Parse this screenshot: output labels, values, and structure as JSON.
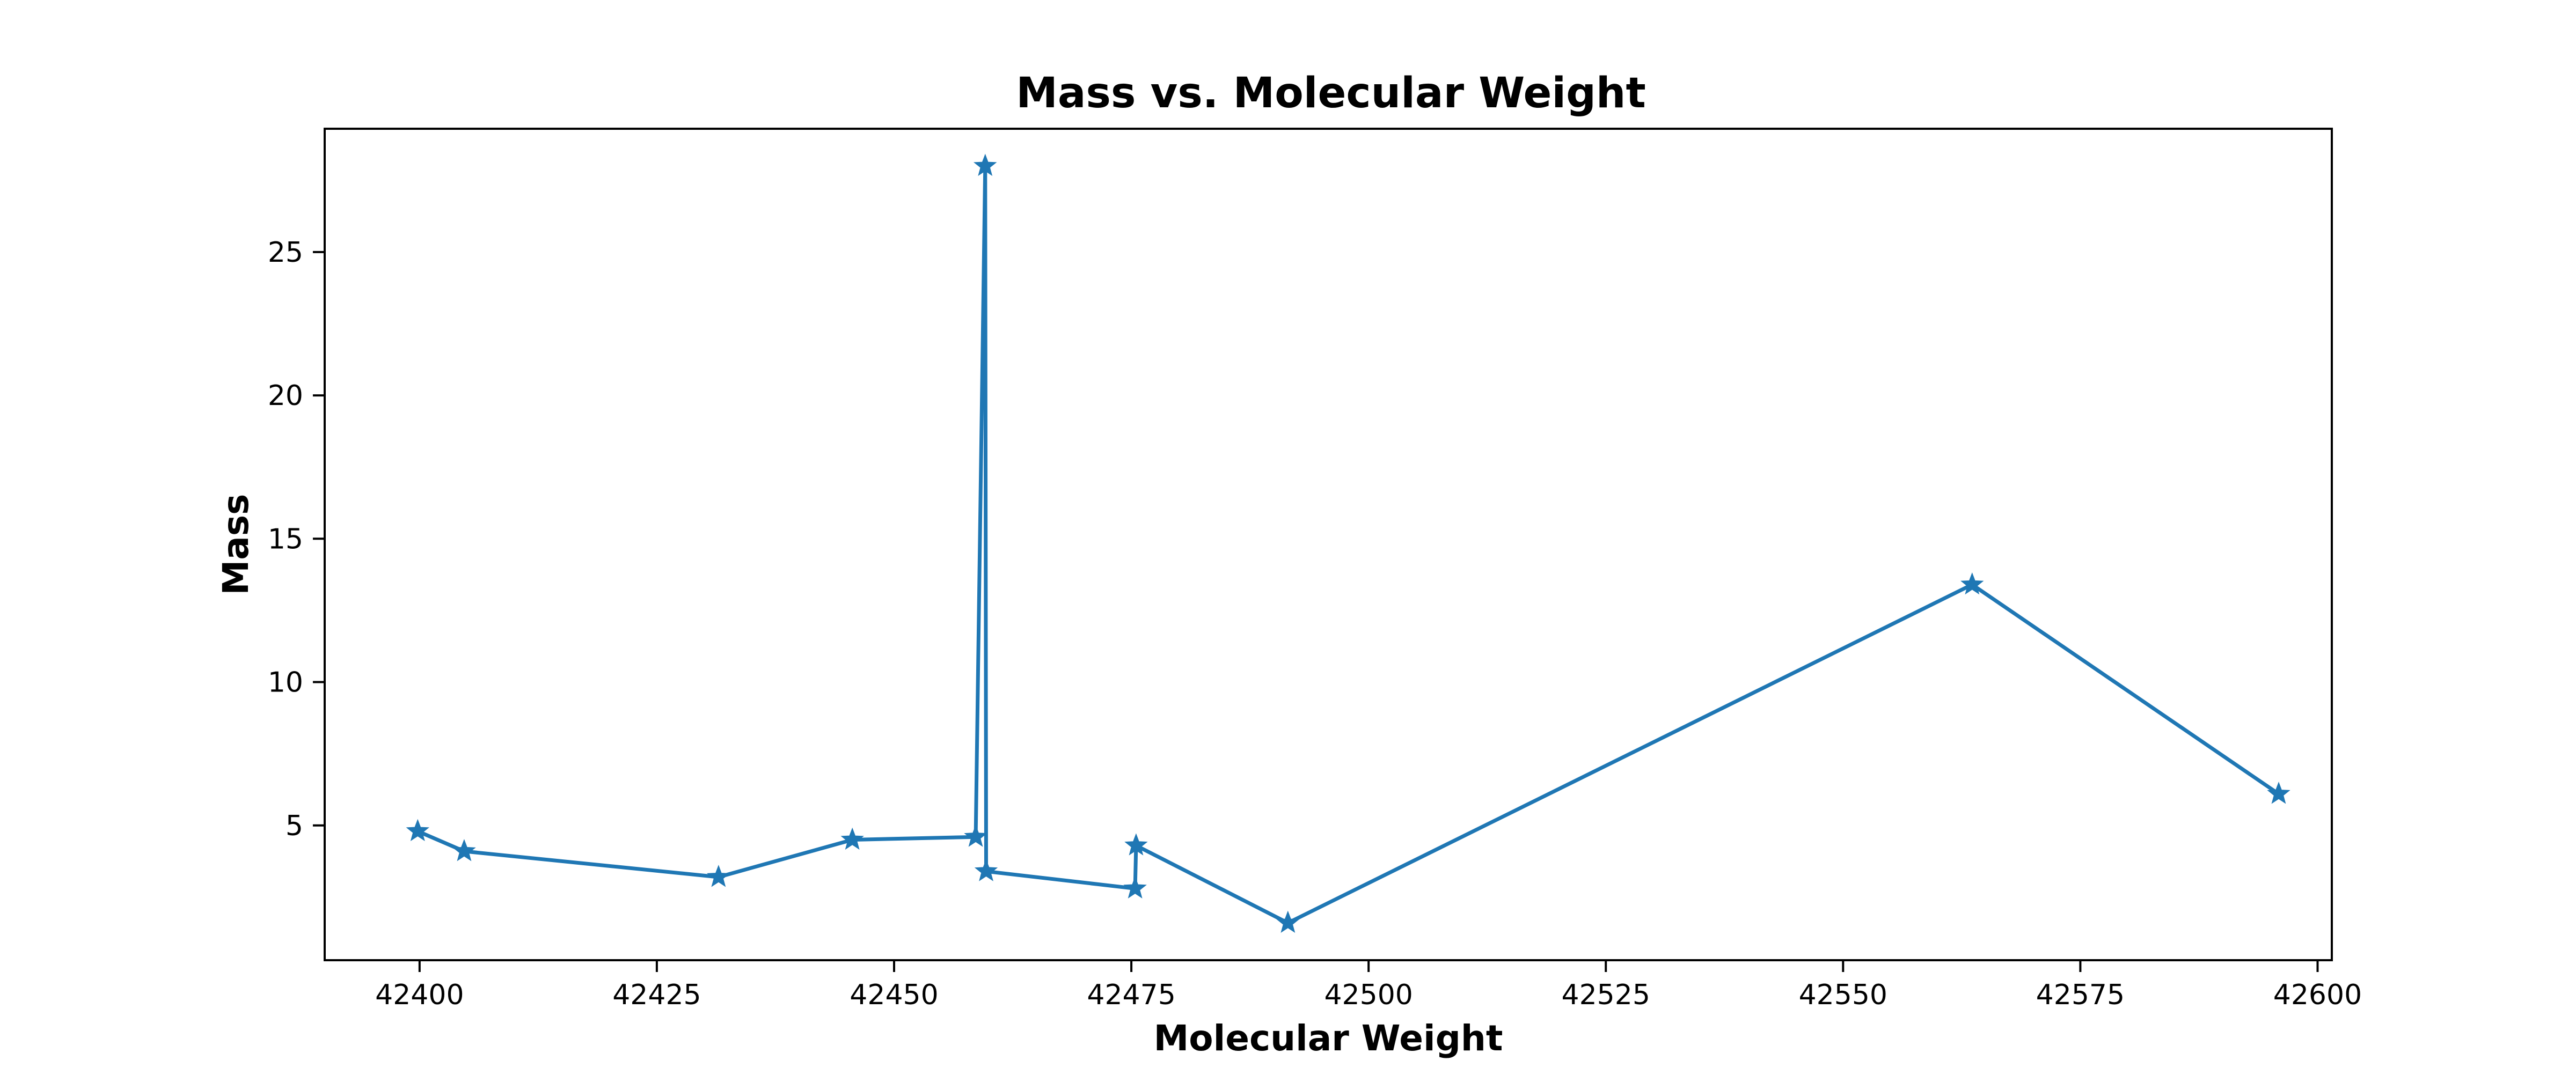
{
  "chart_data": {
    "type": "line",
    "title": "Mass vs. Molecular Weight",
    "xlabel": "Molecular Weight",
    "ylabel": "Mass",
    "xlim": [
      42390,
      42601.5
    ],
    "ylim": [
      0.3,
      29.3
    ],
    "xticks": [
      42400,
      42425,
      42450,
      42475,
      42500,
      42525,
      42550,
      42575,
      42600
    ],
    "yticks": [
      5,
      10,
      15,
      20,
      25
    ],
    "grid": false,
    "legend": "none",
    "marker": "star",
    "series": [
      {
        "color": "#1f77b4",
        "x": [
          42399.8,
          42404.7,
          42431.5,
          42445.6,
          42458.6,
          42459.6,
          42459.7,
          42475.4,
          42475.5,
          42491.5,
          42563.6,
          42595.9
        ],
        "y": [
          4.8,
          4.1,
          3.2,
          4.5,
          4.6,
          28.0,
          3.4,
          2.8,
          4.3,
          1.6,
          13.4,
          6.1
        ]
      }
    ]
  }
}
